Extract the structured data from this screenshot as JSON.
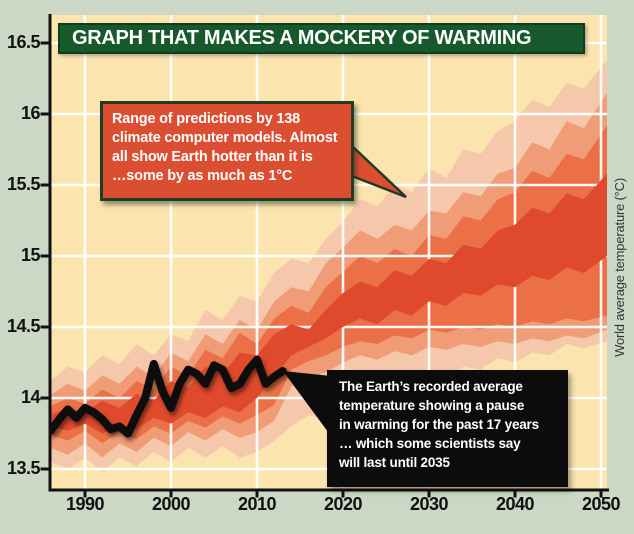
{
  "colors": {
    "background": "#ccd8c6",
    "plot_background": "#fbe4ae",
    "gridline": "#ffffff",
    "axis": "#111111",
    "axis_label_text": "#111111",
    "banner_background": "#17592c",
    "banner_border": "#0d3d1e",
    "banner_text": "#ffffff",
    "model_callout_background": "#dc4e32",
    "model_callout_border": "#213c22",
    "recorded_callout_background": "#0c0c0c",
    "callout_text": "#ffffff",
    "y_axis_title_text": "#333333"
  },
  "chart_data": {
    "type": "area",
    "title": "GRAPH THAT MAKES A MOCKERY OF WARMING",
    "ylabel_right": "World average temperature (°C)",
    "grid": true,
    "xlim": [
      1985.8,
      2050.7
    ],
    "ylim": [
      13.35,
      16.7
    ],
    "x_ticks": [
      {
        "value": 1990,
        "label": "1990"
      },
      {
        "value": 2000,
        "label": "2000"
      },
      {
        "value": 2010,
        "label": "2010"
      },
      {
        "value": 2020,
        "label": "2020"
      },
      {
        "value": 2030,
        "label": "2030"
      },
      {
        "value": 2040,
        "label": "2040"
      },
      {
        "value": 2050,
        "label": "2050"
      }
    ],
    "y_ticks": [
      {
        "value": 16.5,
        "label": "16.5"
      },
      {
        "value": 16,
        "label": "16"
      },
      {
        "value": 15.5,
        "label": "15.5"
      },
      {
        "value": 15,
        "label": "15"
      },
      {
        "value": 14.5,
        "label": "14.5"
      },
      {
        "value": 14,
        "label": "14"
      },
      {
        "value": 13.5,
        "label": "13.5"
      }
    ],
    "band_years": [
      1986,
      1988,
      1990,
      1992,
      1994,
      1996,
      1998,
      2000,
      2002,
      2004,
      2006,
      2008,
      2010,
      2012,
      2014,
      2016,
      2018,
      2020,
      2022,
      2024,
      2026,
      2028,
      2030,
      2032,
      2034,
      2036,
      2038,
      2040,
      2042,
      2044,
      2046,
      2048,
      2050
    ],
    "bands": [
      {
        "name": "models-outer-range",
        "color": "#f5c8ac",
        "above_grid": false,
        "high": [
          14.12,
          14.22,
          14.18,
          14.3,
          14.24,
          14.38,
          14.3,
          14.45,
          14.4,
          14.62,
          14.55,
          14.72,
          14.68,
          14.88,
          14.98,
          14.95,
          15.12,
          15.24,
          15.4,
          15.35,
          15.5,
          15.45,
          15.62,
          15.55,
          15.75,
          15.72,
          15.88,
          15.95,
          16.1,
          16.05,
          16.22,
          16.18,
          16.38
        ],
        "low": [
          13.55,
          13.5,
          13.58,
          13.48,
          13.58,
          13.52,
          13.62,
          13.55,
          13.65,
          13.58,
          13.66,
          13.58,
          13.62,
          13.7,
          13.8,
          13.88,
          13.85,
          13.98,
          14.05,
          14.02,
          14.1,
          14.08,
          14.15,
          14.12,
          14.22,
          14.2,
          14.28,
          14.25,
          14.32,
          14.3,
          14.38,
          14.35,
          14.4
        ]
      },
      {
        "name": "models-middle-range",
        "color": "#f09d77",
        "above_grid": false,
        "high": [
          14.02,
          14.1,
          14.05,
          14.16,
          14.1,
          14.22,
          14.15,
          14.32,
          14.26,
          14.45,
          14.38,
          14.55,
          14.48,
          14.68,
          14.78,
          14.75,
          14.95,
          15.06,
          15.18,
          15.12,
          15.22,
          15.18,
          15.32,
          15.3,
          15.45,
          15.42,
          15.58,
          15.62,
          15.8,
          15.75,
          15.95,
          15.9,
          16.15
        ],
        "low": [
          13.65,
          13.6,
          13.68,
          13.58,
          13.68,
          13.62,
          13.72,
          13.66,
          13.76,
          13.7,
          13.78,
          13.72,
          13.76,
          13.84,
          14.08,
          14.14,
          14.18,
          14.25,
          14.3,
          14.27,
          14.33,
          14.3,
          14.36,
          14.34,
          14.38,
          14.36,
          14.4,
          14.38,
          14.42,
          14.4,
          14.44,
          14.42,
          14.48
        ]
      },
      {
        "name": "models-inner-range",
        "color": "#ec7047",
        "above_grid": false,
        "high": [
          13.94,
          14.0,
          13.96,
          14.06,
          14.0,
          14.12,
          14.06,
          14.22,
          14.16,
          14.34,
          14.28,
          14.46,
          14.38,
          14.56,
          14.65,
          14.6,
          14.78,
          14.89,
          15.0,
          14.95,
          15.05,
          15.0,
          15.15,
          15.12,
          15.28,
          15.25,
          15.4,
          15.45,
          15.6,
          15.55,
          15.72,
          15.68,
          15.92
        ],
        "low": [
          13.74,
          13.7,
          13.77,
          13.68,
          13.76,
          13.71,
          13.8,
          13.75,
          13.84,
          13.79,
          13.87,
          13.82,
          13.88,
          13.95,
          14.2,
          14.26,
          14.3,
          14.36,
          14.4,
          14.38,
          14.44,
          14.42,
          14.48,
          14.46,
          14.5,
          14.48,
          14.52,
          14.5,
          14.54,
          14.52,
          14.56,
          14.54,
          14.58
        ]
      },
      {
        "name": "models-core-range",
        "color": "#e04a2c",
        "above_grid": true,
        "high": [
          13.88,
          13.93,
          13.9,
          13.98,
          13.93,
          14.03,
          13.98,
          14.12,
          14.07,
          14.22,
          14.17,
          14.32,
          14.3,
          14.45,
          14.52,
          14.48,
          14.62,
          14.74,
          14.82,
          14.78,
          14.9,
          14.86,
          14.98,
          14.95,
          15.08,
          15.05,
          15.18,
          15.22,
          15.34,
          15.3,
          15.44,
          15.4,
          15.58
        ],
        "low": [
          13.8,
          13.77,
          13.82,
          13.75,
          13.81,
          13.78,
          13.86,
          13.82,
          13.9,
          13.86,
          13.94,
          13.9,
          14.0,
          14.15,
          14.3,
          14.36,
          14.42,
          14.5,
          14.56,
          14.52,
          14.62,
          14.58,
          14.68,
          14.65,
          14.74,
          14.72,
          14.8,
          14.78,
          14.86,
          14.83,
          14.92,
          14.88,
          15.0
        ]
      }
    ],
    "observed": {
      "name": "recorded-temperature-line",
      "color": "#111111",
      "years": [
        1986,
        1987,
        1988,
        1989,
        1990,
        1991,
        1992,
        1993,
        1994,
        1995,
        1996,
        1997,
        1998,
        1999,
        2000,
        2001,
        2002,
        2003,
        2004,
        2005,
        2006,
        2007,
        2008,
        2009,
        2010,
        2011,
        2012,
        2013
      ],
      "values": [
        13.77,
        13.85,
        13.92,
        13.86,
        13.93,
        13.9,
        13.85,
        13.78,
        13.8,
        13.75,
        13.88,
        14.0,
        14.24,
        14.05,
        13.93,
        14.1,
        14.2,
        14.17,
        14.1,
        14.23,
        14.2,
        14.07,
        14.1,
        14.2,
        14.27,
        14.1,
        14.15,
        14.19
      ]
    },
    "annotations": [
      {
        "id": "model-range-callout",
        "text": "Range of predictions by 138\nclimate computer models. Almost\nall show Earth hotter than it is\n…some by as much as 1°C"
      },
      {
        "id": "recorded-pause-callout",
        "text": "The Earth’s recorded average\ntemperature showing a pause\nin warming for the past 17 years\n… which some scientists say\nwill last until 2035"
      }
    ]
  }
}
